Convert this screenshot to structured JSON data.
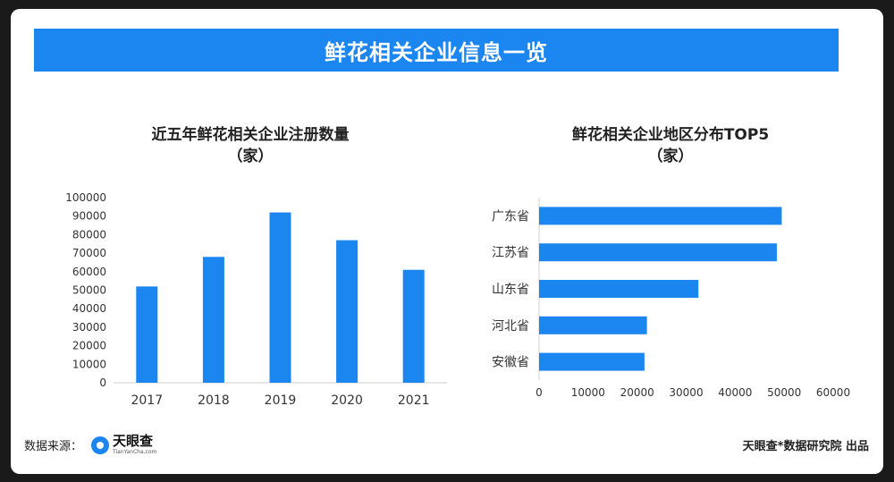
{
  "banner": {
    "title": "鲜花相关企业信息一览"
  },
  "charts": {
    "left": {
      "title_line1": "近五年鲜花相关企业注册数量",
      "title_line2": "（家）"
    },
    "right": {
      "title_line1": "鲜花相关企业地区分布TOP5",
      "title_line2": "（家）"
    }
  },
  "chart_data": [
    {
      "type": "bar",
      "orientation": "vertical",
      "categories": [
        "2017",
        "2018",
        "2019",
        "2020",
        "2021"
      ],
      "values": [
        52000,
        68000,
        92000,
        77000,
        61000
      ],
      "ylim": [
        0,
        100000
      ],
      "yticks": [
        0,
        10000,
        20000,
        30000,
        40000,
        50000,
        60000,
        70000,
        80000,
        90000,
        100000
      ],
      "color": "#1b86ef",
      "grid": false
    },
    {
      "type": "bar",
      "orientation": "horizontal",
      "categories": [
        "广东省",
        "江苏省",
        "山东省",
        "河北省",
        "安徽省"
      ],
      "values": [
        49500,
        48500,
        32500,
        22000,
        21500
      ],
      "xlim": [
        0,
        60000
      ],
      "xticks": [
        0,
        10000,
        20000,
        30000,
        40000,
        50000,
        60000
      ],
      "color": "#1b86ef",
      "grid": false
    }
  ],
  "footer": {
    "source_label": "数据来源：",
    "logo_name": "天眼查",
    "logo_url": "TianYanCha.com",
    "credit": "天眼查*数据研究院 出品"
  }
}
